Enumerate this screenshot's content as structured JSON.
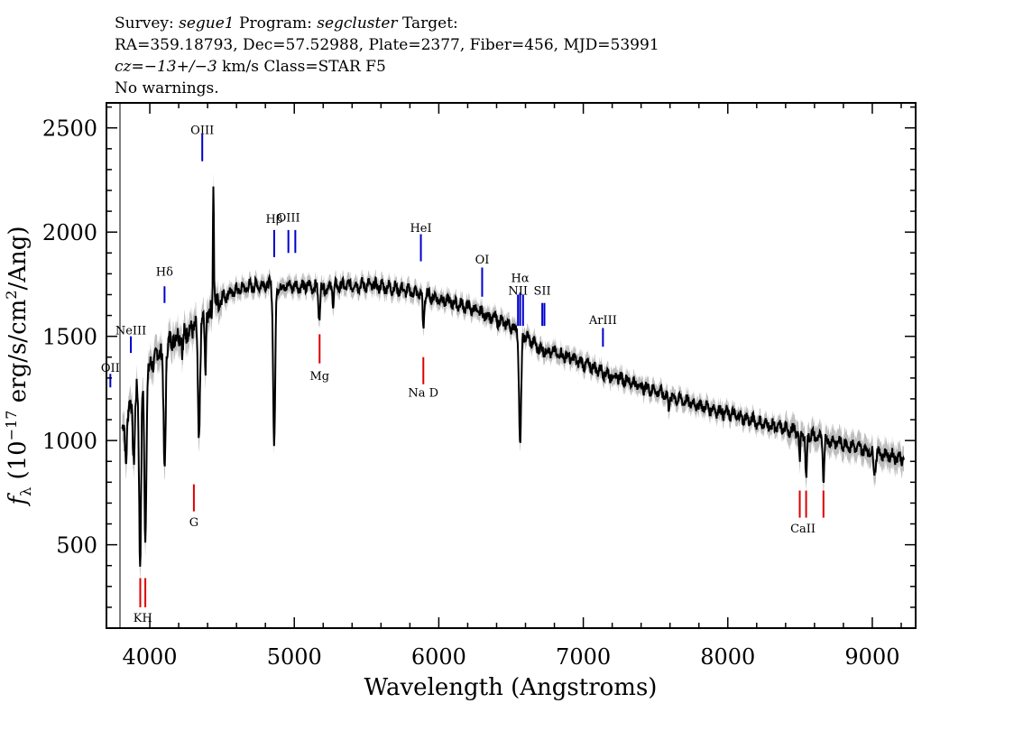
{
  "header": {
    "line1": {
      "a": "Survey: ",
      "b": "segue1",
      "c": " Program: ",
      "d": "segcluster",
      "e": " Target:"
    },
    "line2": "RA=359.18793, Dec=57.52988, Plate=2377, Fiber=456, MJD=53991",
    "line3": {
      "a": "cz=",
      "b": "−13+/−3",
      "c": " km/s Class=STAR F5"
    },
    "line4": "No warnings."
  },
  "colors": {
    "emission": "#0000cc",
    "absorption": "#dd0000",
    "spectrum": "#000000",
    "error_band": "#bdbdbd"
  },
  "chart_data": {
    "type": "line",
    "title": "",
    "xlabel": "Wavelength (Angstroms)",
    "ylabel": "f_λ (10^-17 erg/s/cm^2/Ang)",
    "ylabel_parts": {
      "f": "f",
      "sub": "λ",
      "a": " (10",
      "exp1": "−17",
      "b": " erg/s/cm",
      "exp2": "2",
      "c": "/Ang)"
    },
    "xlim": [
      3700,
      9300
    ],
    "ylim": [
      100,
      2620
    ],
    "xticks": [
      4000,
      5000,
      6000,
      7000,
      8000,
      9000
    ],
    "xtick_labels": [
      "4000",
      "5000",
      "6000",
      "7000",
      "8000",
      "9000"
    ],
    "yticks": [
      500,
      1000,
      1500,
      2000,
      2500
    ],
    "ytick_labels": [
      "500",
      "1000",
      "1500",
      "2000",
      "2500"
    ],
    "spectrum_continuum": [
      [
        3810,
        1050
      ],
      [
        3850,
        1150
      ],
      [
        3900,
        1230
      ],
      [
        3950,
        1300
      ],
      [
        4000,
        1350
      ],
      [
        4050,
        1410
      ],
      [
        4100,
        1460
      ],
      [
        4150,
        1480
      ],
      [
        4200,
        1510
      ],
      [
        4250,
        1520
      ],
      [
        4300,
        1540
      ],
      [
        4350,
        1560
      ],
      [
        4400,
        1600
      ],
      [
        4450,
        1650
      ],
      [
        4500,
        1690
      ],
      [
        4600,
        1720
      ],
      [
        4700,
        1740
      ],
      [
        4800,
        1750
      ],
      [
        4850,
        1740
      ],
      [
        4900,
        1740
      ],
      [
        5000,
        1740
      ],
      [
        5100,
        1740
      ],
      [
        5200,
        1730
      ],
      [
        5300,
        1740
      ],
      [
        5400,
        1745
      ],
      [
        5500,
        1745
      ],
      [
        5600,
        1740
      ],
      [
        5700,
        1730
      ],
      [
        5800,
        1715
      ],
      [
        5900,
        1700
      ],
      [
        6000,
        1680
      ],
      [
        6100,
        1660
      ],
      [
        6200,
        1640
      ],
      [
        6300,
        1610
      ],
      [
        6400,
        1580
      ],
      [
        6500,
        1550
      ],
      [
        6600,
        1500
      ],
      [
        6700,
        1440
      ],
      [
        6800,
        1420
      ],
      [
        6900,
        1400
      ],
      [
        7000,
        1370
      ],
      [
        7100,
        1340
      ],
      [
        7200,
        1310
      ],
      [
        7300,
        1290
      ],
      [
        7400,
        1260
      ],
      [
        7500,
        1240
      ],
      [
        7600,
        1210
      ],
      [
        7700,
        1190
      ],
      [
        7800,
        1170
      ],
      [
        7900,
        1150
      ],
      [
        8000,
        1130
      ],
      [
        8100,
        1110
      ],
      [
        8200,
        1090
      ],
      [
        8300,
        1070
      ],
      [
        8400,
        1055
      ],
      [
        8500,
        1040
      ],
      [
        8600,
        1020
      ],
      [
        8700,
        1000
      ],
      [
        8800,
        985
      ],
      [
        8900,
        965
      ],
      [
        9000,
        945
      ],
      [
        9100,
        930
      ],
      [
        9200,
        915
      ]
    ],
    "absorption_dips": [
      {
        "x": 3835,
        "depth": 220,
        "w": 8
      },
      {
        "x": 3889,
        "depth": 300,
        "w": 10
      },
      {
        "x": 3933,
        "depth": 850,
        "w": 10
      },
      {
        "x": 3969,
        "depth": 780,
        "w": 10
      },
      {
        "x": 4102,
        "depth": 620,
        "w": 10
      },
      {
        "x": 4227,
        "depth": 120,
        "w": 6
      },
      {
        "x": 4340,
        "depth": 560,
        "w": 10
      },
      {
        "x": 4384,
        "depth": 250,
        "w": 6
      },
      {
        "x": 4861,
        "depth": 760,
        "w": 10
      },
      {
        "x": 5172,
        "depth": 140,
        "w": 8
      },
      {
        "x": 5270,
        "depth": 80,
        "w": 6
      },
      {
        "x": 5893,
        "depth": 170,
        "w": 7
      },
      {
        "x": 6563,
        "depth": 560,
        "w": 10
      },
      {
        "x": 7590,
        "depth": 60,
        "w": 6
      },
      {
        "x": 8498,
        "depth": 150,
        "w": 6
      },
      {
        "x": 8542,
        "depth": 230,
        "w": 7
      },
      {
        "x": 8662,
        "depth": 200,
        "w": 7
      },
      {
        "x": 9015,
        "depth": 90,
        "w": 10
      }
    ],
    "spikes": [
      {
        "x": 4440,
        "height": 620,
        "w": 5
      }
    ],
    "emission_lines": [
      {
        "label": "OII",
        "x": 3727,
        "y_low": 1255,
        "y_high": 1320,
        "label_y": 1330
      },
      {
        "label": "NeIII",
        "x": 3869,
        "y_low": 1420,
        "y_high": 1500,
        "label_y": 1510
      },
      {
        "label": "Hδ",
        "x": 4102,
        "y_low": 1660,
        "y_high": 1740,
        "label_y": 1790
      },
      {
        "label": "OIII",
        "x": 4363,
        "y_low": 2340,
        "y_high": 2470,
        "label_y": 2470
      },
      {
        "label": "Hβ",
        "x": 4861,
        "y_low": 1880,
        "y_high": 2010,
        "label_y": 2045
      },
      {
        "label": "OIII",
        "x": 4959,
        "y_low": 1900,
        "y_high": 2010,
        "label_y": 2050
      },
      {
        "label": "OIII_2",
        "x": 5007,
        "y_low": 1900,
        "y_high": 2010
      },
      {
        "label": "HeI",
        "x": 5876,
        "y_low": 1860,
        "y_high": 1990,
        "label_y": 2000
      },
      {
        "label": "OI",
        "x": 6300,
        "y_low": 1690,
        "y_high": 1830,
        "label_y": 1850
      },
      {
        "label": "NII",
        "x": 6548,
        "y_low": 1550,
        "y_high": 1700,
        "label_y": 1700
      },
      {
        "label": "Hα",
        "x": 6563,
        "y_low": 1550,
        "y_high": 1710,
        "label_y": 1760
      },
      {
        "label": "NII_2",
        "x": 6583,
        "y_low": 1550,
        "y_high": 1700
      },
      {
        "label": "SII",
        "x": 6716,
        "y_low": 1550,
        "y_high": 1660,
        "label_y": 1700
      },
      {
        "label": "SII_2",
        "x": 6731,
        "y_low": 1550,
        "y_high": 1660
      },
      {
        "label": "ArIII",
        "x": 7136,
        "y_low": 1450,
        "y_high": 1540,
        "label_y": 1560
      }
    ],
    "absorption_markers": [
      {
        "label": "KH",
        "x": 3934,
        "x2": 3969,
        "y_low": 200,
        "y_high": 340,
        "label_y": 130
      },
      {
        "label": "G",
        "x": 4305,
        "y_low": 660,
        "y_high": 790,
        "label_y": 590
      },
      {
        "label": "Mg",
        "x": 5175,
        "y_low": 1370,
        "y_high": 1510,
        "label_y": 1290
      },
      {
        "label": "Na D",
        "x": 5893,
        "y_low": 1270,
        "y_high": 1400,
        "label_y": 1210
      },
      {
        "label": "CaII",
        "x": 8498,
        "x2": 8542,
        "x3": 8662,
        "y_low": 630,
        "y_high": 760,
        "label_y": 560
      }
    ]
  }
}
